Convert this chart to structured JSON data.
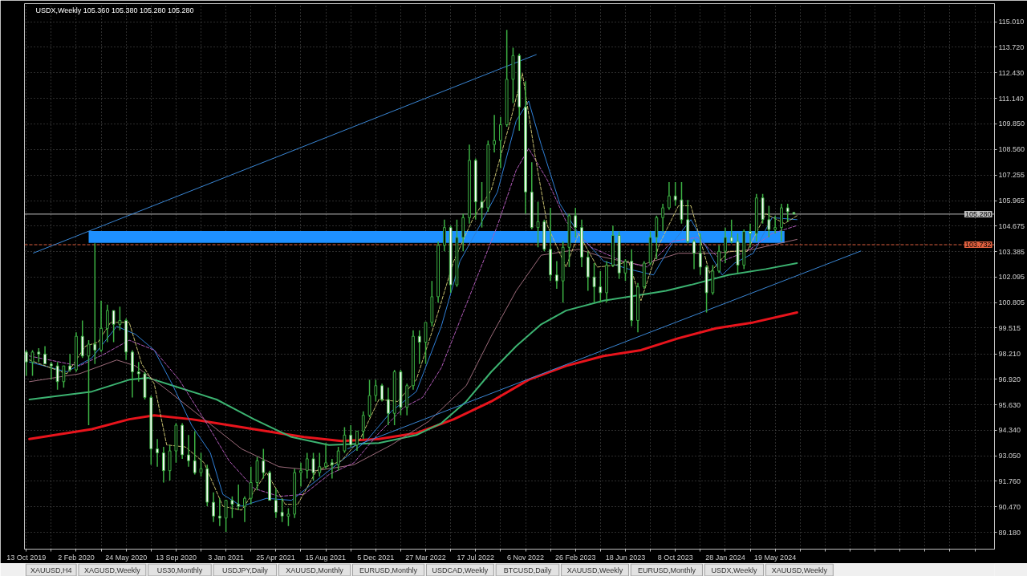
{
  "chart_data": {
    "type": "candlestick",
    "title": "USDX,Weekly 105.360 105.380 105.280 105.280",
    "color": "#3cb043",
    "x": [
      "2019-10-13",
      "2019-10-27",
      "2019-11-10",
      "2019-11-24",
      "2019-12-08",
      "2019-12-22",
      "2020-01-05",
      "2020-01-19",
      "2020-02-02",
      "2020-02-16",
      "2020-03-01",
      "2020-03-15",
      "2020-03-29",
      "2020-04-12",
      "2020-04-26",
      "2020-05-10",
      "2020-05-24",
      "2020-06-07",
      "2020-06-21",
      "2020-07-05",
      "2020-07-19",
      "2020-08-02",
      "2020-08-16",
      "2020-08-30",
      "2020-09-13",
      "2020-09-27",
      "2020-10-11",
      "2020-10-25",
      "2020-11-08",
      "2020-11-22",
      "2020-12-06",
      "2020-12-20",
      "2021-01-03",
      "2021-01-17",
      "2021-01-31",
      "2021-02-14",
      "2021-02-28",
      "2021-03-14",
      "2021-03-28",
      "2021-04-11",
      "2021-04-25",
      "2021-05-09",
      "2021-05-23",
      "2021-06-06",
      "2021-06-20",
      "2021-07-04",
      "2021-07-18",
      "2021-08-01",
      "2021-08-15",
      "2021-08-29",
      "2021-09-12",
      "2021-09-26",
      "2021-10-10",
      "2021-10-24",
      "2021-11-07",
      "2021-11-21",
      "2021-12-05",
      "2021-12-19",
      "2022-01-02",
      "2022-01-16",
      "2022-01-30",
      "2022-02-13",
      "2022-02-27",
      "2022-03-13",
      "2022-03-27",
      "2022-04-10",
      "2022-04-24",
      "2022-05-08",
      "2022-05-22",
      "2022-06-05",
      "2022-06-19",
      "2022-07-03",
      "2022-07-17",
      "2022-07-31",
      "2022-08-14",
      "2022-08-28",
      "2022-09-11",
      "2022-09-25",
      "2022-10-09",
      "2022-10-23",
      "2022-11-06",
      "2022-11-20",
      "2022-12-04",
      "2022-12-18",
      "2023-01-01",
      "2023-01-15",
      "2023-01-29",
      "2023-02-12",
      "2023-02-26",
      "2023-03-12",
      "2023-03-26",
      "2023-04-09",
      "2023-04-23",
      "2023-05-07",
      "2023-05-21",
      "2023-06-04",
      "2023-06-18",
      "2023-07-02",
      "2023-07-16",
      "2023-07-30",
      "2023-08-13",
      "2023-08-27",
      "2023-09-10",
      "2023-09-24",
      "2023-10-08",
      "2023-10-22",
      "2023-11-05",
      "2023-11-19",
      "2023-12-03",
      "2023-12-17",
      "2023-12-31",
      "2024-01-14",
      "2024-01-28",
      "2024-02-11",
      "2024-02-25",
      "2024-03-10",
      "2024-03-24",
      "2024-04-07",
      "2024-04-21",
      "2024-05-05",
      "2024-05-19",
      "2024-06-02",
      "2024-06-16",
      "2024-06-30"
    ],
    "ohlc": [
      [
        98.3,
        98.4,
        97.1,
        97.8
      ],
      [
        97.8,
        98.4,
        97.1,
        98.3
      ],
      [
        98.3,
        98.5,
        97.8,
        98.2
      ],
      [
        98.2,
        98.6,
        97.7,
        97.7
      ],
      [
        97.7,
        97.8,
        96.9,
        97.6
      ],
      [
        97.6,
        97.8,
        96.4,
        96.8
      ],
      [
        96.8,
        97.6,
        96.5,
        97.6
      ],
      [
        97.6,
        98.2,
        97.3,
        97.4
      ],
      [
        97.4,
        99.3,
        97.3,
        99.1
      ],
      [
        99.1,
        99.9,
        98.0,
        98.1
      ],
      [
        98.1,
        98.9,
        94.6,
        98.7
      ],
      [
        98.7,
        103.8,
        97.7,
        98.4
      ],
      [
        98.4,
        100.9,
        98.3,
        99.5
      ],
      [
        99.5,
        100.7,
        98.8,
        100.4
      ],
      [
        100.4,
        100.4,
        98.8,
        99.7
      ],
      [
        99.7,
        100.6,
        99.4,
        99.9
      ],
      [
        99.9,
        100.0,
        97.9,
        98.3
      ],
      [
        98.3,
        98.4,
        96.0,
        97.3
      ],
      [
        97.3,
        97.8,
        96.8,
        97.2
      ],
      [
        97.2,
        97.3,
        95.9,
        96.0
      ],
      [
        96.0,
        96.1,
        92.6,
        93.4
      ],
      [
        93.4,
        93.9,
        92.5,
        93.2
      ],
      [
        93.2,
        93.5,
        91.7,
        92.3
      ],
      [
        92.3,
        93.6,
        91.8,
        93.3
      ],
      [
        93.3,
        94.7,
        92.7,
        94.6
      ],
      [
        94.6,
        94.7,
        92.9,
        93.1
      ],
      [
        93.1,
        94.1,
        92.5,
        92.8
      ],
      [
        92.8,
        94.3,
        92.1,
        92.2
      ],
      [
        92.2,
        93.2,
        92.0,
        92.4
      ],
      [
        92.4,
        92.6,
        90.5,
        90.7
      ],
      [
        90.7,
        91.2,
        89.7,
        90.0
      ],
      [
        90.0,
        90.9,
        89.5,
        89.9
      ],
      [
        89.9,
        90.8,
        89.2,
        90.8
      ],
      [
        90.8,
        91.0,
        89.9,
        90.6
      ],
      [
        90.6,
        91.6,
        90.3,
        90.5
      ],
      [
        90.5,
        91.0,
        89.7,
        90.9
      ],
      [
        90.9,
        92.5,
        90.6,
        91.7
      ],
      [
        91.7,
        93.0,
        91.3,
        92.8
      ],
      [
        92.8,
        93.4,
        91.9,
        92.2
      ],
      [
        92.2,
        92.3,
        90.8,
        90.8
      ],
      [
        90.8,
        91.4,
        89.9,
        90.2
      ],
      [
        90.2,
        90.9,
        89.7,
        90.0
      ],
      [
        90.0,
        90.4,
        89.5,
        90.1
      ],
      [
        90.1,
        92.4,
        89.9,
        92.2
      ],
      [
        92.2,
        92.7,
        91.5,
        92.3
      ],
      [
        92.3,
        93.2,
        91.9,
        92.9
      ],
      [
        92.9,
        93.2,
        91.8,
        92.2
      ],
      [
        92.2,
        93.2,
        92.0,
        92.5
      ],
      [
        92.5,
        93.7,
        92.4,
        92.7
      ],
      [
        92.7,
        92.9,
        91.9,
        92.6
      ],
      [
        92.6,
        93.5,
        92.3,
        93.3
      ],
      [
        93.3,
        94.5,
        93.2,
        94.1
      ],
      [
        94.1,
        94.6,
        93.5,
        93.6
      ],
      [
        93.6,
        94.3,
        93.3,
        94.3
      ],
      [
        94.3,
        95.3,
        93.9,
        95.1
      ],
      [
        95.1,
        96.9,
        95.0,
        96.1
      ],
      [
        96.1,
        96.9,
        95.8,
        96.6
      ],
      [
        96.6,
        96.7,
        95.8,
        95.9
      ],
      [
        95.9,
        96.5,
        94.6,
        95.2
      ],
      [
        95.2,
        97.4,
        94.6,
        97.3
      ],
      [
        97.3,
        97.4,
        95.1,
        95.5
      ],
      [
        95.5,
        96.7,
        95.1,
        96.6
      ],
      [
        96.6,
        99.4,
        96.4,
        99.1
      ],
      [
        99.1,
        99.4,
        97.7,
        98.8
      ],
      [
        98.8,
        99.8,
        97.7,
        99.8
      ],
      [
        99.8,
        101.9,
        99.6,
        101.1
      ],
      [
        101.1,
        103.9,
        100.8,
        103.7
      ],
      [
        103.7,
        105.0,
        103.4,
        104.6
      ],
      [
        104.6,
        104.7,
        101.3,
        101.7
      ],
      [
        101.7,
        105.0,
        101.6,
        104.1
      ],
      [
        104.1,
        105.3,
        103.4,
        105.1
      ],
      [
        105.1,
        108.8,
        104.8,
        108.0
      ],
      [
        108.0,
        108.1,
        105.0,
        105.9
      ],
      [
        105.9,
        106.9,
        104.6,
        105.6
      ],
      [
        105.6,
        109.0,
        105.4,
        108.8
      ],
      [
        108.8,
        110.3,
        108.4,
        109.0
      ],
      [
        109.0,
        110.2,
        107.6,
        109.8
      ],
      [
        109.8,
        114.6,
        109.7,
        112.1
      ],
      [
        112.1,
        113.7,
        110.9,
        113.3
      ],
      [
        113.3,
        113.4,
        109.5,
        110.7
      ],
      [
        110.7,
        112.0,
        105.3,
        106.4
      ],
      [
        106.4,
        107.9,
        104.5,
        104.6
      ],
      [
        104.6,
        105.9,
        103.6,
        104.9
      ],
      [
        104.9,
        105.0,
        103.4,
        103.5
      ],
      [
        103.5,
        105.6,
        101.9,
        102.2
      ],
      [
        102.2,
        102.9,
        101.5,
        101.9
      ],
      [
        101.9,
        103.9,
        100.8,
        103.6
      ],
      [
        103.6,
        105.3,
        102.6,
        105.2
      ],
      [
        105.2,
        105.6,
        104.1,
        104.6
      ],
      [
        104.6,
        105.0,
        102.6,
        103.1
      ],
      [
        103.1,
        103.4,
        101.4,
        102.1
      ],
      [
        102.1,
        102.8,
        100.8,
        101.6
      ],
      [
        101.6,
        102.4,
        100.8,
        101.3
      ],
      [
        101.3,
        102.9,
        100.8,
        102.7
      ],
      [
        102.7,
        104.7,
        102.6,
        104.2
      ],
      [
        104.2,
        104.4,
        102.0,
        102.3
      ],
      [
        102.3,
        103.0,
        101.9,
        102.9
      ],
      [
        102.9,
        103.5,
        99.6,
        99.9
      ],
      [
        99.9,
        101.8,
        99.3,
        101.6
      ],
      [
        101.6,
        102.9,
        101.5,
        102.8
      ],
      [
        102.8,
        104.4,
        102.7,
        104.1
      ],
      [
        104.1,
        105.2,
        103.0,
        105.1
      ],
      [
        105.1,
        105.8,
        104.4,
        105.6
      ],
      [
        105.6,
        106.9,
        105.5,
        106.2
      ],
      [
        106.2,
        106.9,
        105.7,
        106.0
      ],
      [
        106.0,
        106.9,
        104.8,
        105.0
      ],
      [
        105.0,
        106.0,
        103.8,
        103.9
      ],
      [
        103.9,
        104.0,
        102.5,
        103.3
      ],
      [
        103.3,
        104.3,
        102.2,
        102.6
      ],
      [
        102.6,
        102.7,
        100.3,
        101.3
      ],
      [
        101.3,
        102.7,
        101.2,
        102.4
      ],
      [
        102.4,
        103.7,
        102.3,
        103.4
      ],
      [
        103.4,
        104.6,
        102.8,
        104.1
      ],
      [
        104.1,
        105.0,
        103.8,
        103.9
      ],
      [
        103.9,
        104.3,
        102.3,
        102.7
      ],
      [
        102.7,
        104.5,
        102.5,
        104.4
      ],
      [
        104.4,
        104.8,
        103.6,
        104.3
      ],
      [
        104.3,
        106.3,
        103.9,
        106.1
      ],
      [
        106.1,
        106.3,
        104.8,
        105.0
      ],
      [
        105.0,
        105.7,
        104.1,
        104.5
      ],
      [
        104.5,
        105.2,
        104.3,
        104.6
      ],
      [
        104.6,
        105.8,
        103.9,
        105.6
      ],
      [
        105.6,
        105.8,
        104.9,
        105.4
      ],
      [
        105.36,
        105.38,
        105.28,
        105.28
      ]
    ],
    "colors": [
      "#ffffff",
      "#000000",
      "#ffffff",
      "#ffffff",
      "#ffffff",
      "#ffffff",
      "#000000",
      "#ffffff",
      "#000000",
      "#ffffff",
      "#000000",
      "#ffffff",
      "#000000",
      "#000000",
      "#ffffff",
      "#000000",
      "#ffffff",
      "#ffffff",
      "#ffffff",
      "#ffffff",
      "#ffffff",
      "#ffffff",
      "#ffffff",
      "#000000",
      "#000000",
      "#ffffff",
      "#ffffff",
      "#ffffff",
      "#000000",
      "#ffffff",
      "#ffffff",
      "#ffffff",
      "#000000",
      "#ffffff",
      "#ffffff",
      "#000000",
      "#000000",
      "#000000",
      "#ffffff",
      "#ffffff",
      "#ffffff",
      "#ffffff",
      "#000000",
      "#000000",
      "#000000",
      "#000000",
      "#ffffff",
      "#000000",
      "#000000",
      "#ffffff",
      "#000000",
      "#000000",
      "#ffffff",
      "#000000",
      "#000000",
      "#000000",
      "#000000",
      "#ffffff",
      "#ffffff",
      "#000000",
      "#ffffff",
      "#000000",
      "#000000",
      "#ffffff",
      "#000000",
      "#000000",
      "#000000",
      "#000000",
      "#ffffff",
      "#000000",
      "#000000",
      "#000000",
      "#ffffff",
      "#ffffff",
      "#000000",
      "#000000",
      "#000000",
      "#000000",
      "#000000",
      "#ffffff",
      "#ffffff",
      "#ffffff",
      "#000000",
      "#ffffff",
      "#ffffff",
      "#ffffff",
      "#000000",
      "#000000",
      "#ffffff",
      "#ffffff",
      "#ffffff",
      "#ffffff",
      "#ffffff",
      "#000000",
      "#000000",
      "#ffffff",
      "#000000",
      "#ffffff",
      "#000000",
      "#000000",
      "#000000",
      "#000000",
      "#000000",
      "#000000",
      "#ffffff",
      "#ffffff",
      "#ffffff",
      "#ffffff",
      "#ffffff",
      "#ffffff",
      "#000000",
      "#000000",
      "#000000",
      "#ffffff",
      "#ffffff",
      "#000000",
      "#ffffff",
      "#000000",
      "#ffffff",
      "#ffffff",
      "#000000",
      "#000000",
      "#ffffff",
      "#ffffff"
    ],
    "series": [
      {
        "type": "line",
        "color": "#1e90ff",
        "x": [
          "2020-03-01",
          "2024-06-09"
        ],
        "values": [
          null,
          null
        ],
        "lower": [
          103.82,
          103.82
        ],
        "upper": [
          104.42,
          104.42
        ]
      },
      {
        "type": "line",
        "color": "#e8141c",
        "x": [
          "2019-10-20",
          "2020-03-08",
          "2020-05-31",
          "2020-07-26",
          "2020-10-18",
          "2021-01-10",
          "2021-04-04",
          "2021-06-27",
          "2021-09-19",
          "2021-12-12",
          "2022-03-06",
          "2022-05-29",
          "2022-08-21",
          "2022-11-13",
          "2023-02-05",
          "2023-04-30",
          "2023-07-23",
          "2023-10-15",
          "2024-01-07",
          "2024-03-31",
          "2024-07-07"
        ],
        "values": [
          93.9,
          94.4,
          94.9,
          95.1,
          94.9,
          94.6,
          94.3,
          94.0,
          93.8,
          93.9,
          94.2,
          94.9,
          95.8,
          96.9,
          97.6,
          98.1,
          98.4,
          99.0,
          99.5,
          99.8,
          100.3
        ]
      },
      {
        "type": "line",
        "color": "#3cb371",
        "x": [
          "2019-10-20",
          "2020-03-08",
          "2020-05-31",
          "2020-07-12",
          "2020-09-20",
          "2020-12-13",
          "2021-03-07",
          "2021-05-30",
          "2021-08-22",
          "2021-12-12",
          "2022-03-06",
          "2022-05-01",
          "2022-06-26",
          "2022-08-21",
          "2022-10-16",
          "2022-12-11",
          "2023-02-05",
          "2023-04-30",
          "2023-07-23",
          "2023-09-17",
          "2023-11-12",
          "2024-02-04",
          "2024-04-28",
          "2024-07-07"
        ],
        "values": [
          95.9,
          96.3,
          96.9,
          97.0,
          96.5,
          95.9,
          94.9,
          94.0,
          93.6,
          93.7,
          94.1,
          94.7,
          95.8,
          97.3,
          98.6,
          99.7,
          100.4,
          100.9,
          101.2,
          101.4,
          101.7,
          102.2,
          102.5,
          102.8
        ]
      },
      {
        "type": "line",
        "color": "#9c6b7a",
        "x": [
          "2019-10-20",
          "2020-02-09",
          "2020-05-03",
          "2020-06-14",
          "2020-08-23",
          "2020-11-15",
          "2021-02-07",
          "2021-05-02",
          "2021-07-25",
          "2021-10-17",
          "2022-01-09",
          "2022-04-03",
          "2022-06-26",
          "2022-08-21",
          "2022-10-16",
          "2022-12-11",
          "2023-03-05",
          "2023-04-30",
          "2023-07-23",
          "2023-10-15",
          "2024-01-07",
          "2024-03-31",
          "2024-07-07"
        ],
        "values": [
          96.8,
          97.2,
          97.9,
          97.6,
          96.4,
          94.9,
          93.4,
          92.5,
          92.3,
          92.6,
          93.6,
          94.8,
          96.6,
          99.1,
          101.4,
          103.2,
          103.5,
          103.1,
          102.7,
          103.3,
          103.3,
          103.5,
          104.0
        ]
      },
      {
        "type": "line",
        "color": "#2f7fd6",
        "x": [
          "2019-10-20",
          "2020-01-12",
          "2020-03-08",
          "2020-05-03",
          "2020-06-14",
          "2020-07-26",
          "2020-09-06",
          "2020-10-18",
          "2020-11-29",
          "2020-12-27",
          "2021-02-07",
          "2021-04-04",
          "2021-05-30",
          "2021-07-25",
          "2021-09-19",
          "2021-11-14",
          "2022-01-09",
          "2022-03-06",
          "2022-05-01",
          "2022-06-12",
          "2022-07-24",
          "2022-09-04",
          "2022-10-16",
          "2022-11-13",
          "2022-12-11",
          "2023-01-22",
          "2023-03-05",
          "2023-04-30",
          "2023-06-25",
          "2023-08-20",
          "2023-10-01",
          "2023-11-12",
          "2023-12-24",
          "2024-01-21",
          "2024-02-18",
          "2024-03-31",
          "2024-05-12",
          "2024-07-07"
        ],
        "values": [
          97.8,
          97.3,
          98.0,
          99.6,
          99.2,
          98.4,
          96.6,
          94.6,
          93.2,
          91.1,
          90.5,
          90.9,
          90.8,
          91.8,
          92.8,
          93.8,
          95.3,
          96.3,
          99.6,
          102.9,
          104.6,
          106.4,
          110.0,
          111.0,
          108.8,
          105.8,
          104.3,
          102.9,
          102.5,
          102.2,
          103.8,
          105.0,
          103.3,
          102.2,
          102.8,
          103.3,
          105.1,
          105.0
        ]
      },
      {
        "type": "line",
        "color": "#b05ab8",
        "line_style": "dashed",
        "x": [
          "2019-10-20",
          "2020-02-09",
          "2020-04-05",
          "2020-05-31",
          "2020-07-26",
          "2020-09-20",
          "2020-11-15",
          "2021-01-10",
          "2021-03-07",
          "2021-05-02",
          "2021-06-27",
          "2021-08-22",
          "2021-10-17",
          "2021-12-12",
          "2022-02-06",
          "2022-03-20",
          "2022-05-01",
          "2022-06-12",
          "2022-07-24",
          "2022-09-04",
          "2022-10-16",
          "2022-11-13",
          "2022-12-25",
          "2023-02-05",
          "2023-04-02",
          "2023-06-11",
          "2023-08-06",
          "2023-10-01",
          "2023-11-26",
          "2024-01-21",
          "2024-03-17",
          "2024-05-12",
          "2024-07-07"
        ],
        "values": [
          98.1,
          97.6,
          98.2,
          98.9,
          98.4,
          96.9,
          94.9,
          92.8,
          91.4,
          91.0,
          91.1,
          92.1,
          92.7,
          94.2,
          95.5,
          96.0,
          97.5,
          99.9,
          102.3,
          104.7,
          107.5,
          108.6,
          107.0,
          104.9,
          103.6,
          102.9,
          102.6,
          103.9,
          104.1,
          102.9,
          103.4,
          104.3,
          104.7
        ]
      },
      {
        "type": "line",
        "color": "#c8c070",
        "line_style": "dashed",
        "x": [
          "2019-10-20",
          "2020-01-12",
          "2020-02-23",
          "2020-03-22",
          "2020-04-19",
          "2020-05-31",
          "2020-06-28",
          "2020-07-26",
          "2020-08-23",
          "2020-10-04",
          "2020-11-15",
          "2020-12-27",
          "2021-02-07",
          "2021-04-04",
          "2021-05-16",
          "2021-06-13",
          "2021-07-25",
          "2021-09-19",
          "2021-10-31",
          "2021-12-12",
          "2022-01-23",
          "2022-03-06",
          "2022-04-17",
          "2022-05-29",
          "2022-07-10",
          "2022-08-21",
          "2022-10-02",
          "2022-10-30",
          "2022-11-27",
          "2022-12-25",
          "2023-02-05",
          "2023-03-05",
          "2023-04-16",
          "2023-05-28",
          "2023-06-25",
          "2023-07-23",
          "2023-09-03",
          "2023-10-15",
          "2023-11-12",
          "2023-12-24",
          "2024-02-04",
          "2024-03-17",
          "2024-04-28",
          "2024-06-09",
          "2024-07-07"
        ],
        "values": [
          97.9,
          97.2,
          98.6,
          98.8,
          99.8,
          99.8,
          97.7,
          96.7,
          93.6,
          93.5,
          92.7,
          90.5,
          90.3,
          92.2,
          90.6,
          90.6,
          92.3,
          92.8,
          93.9,
          95.9,
          95.8,
          96.9,
          99.8,
          102.9,
          105.0,
          106.5,
          109.9,
          112.4,
          108.3,
          104.7,
          102.6,
          104.3,
          102.6,
          102.7,
          102.9,
          100.9,
          103.8,
          105.7,
          105.7,
          102.3,
          103.4,
          103.4,
          105.3,
          104.8,
          105.2
        ]
      },
      {
        "type": "line",
        "color": "#3a86d4",
        "x": [
          "2019-10-29",
          "2022-11-30"
        ],
        "values": [
          103.31,
          113.35
        ]
      },
      {
        "type": "line",
        "color": "#3a86d4",
        "x": [
          "2021-10-03",
          "2024-11-27"
        ],
        "values": [
          93.41,
          103.41
        ]
      }
    ],
    "xlim": [
      "2019-10-09",
      "2025-09-23"
    ],
    "ylim": [
      88.33,
      115.93
    ],
    "xticks": [
      {
        "value": "2019-10-13",
        "label": "13 Oct 2019"
      },
      {
        "value": "2019-12-08",
        "label": null
      },
      {
        "value": "2020-02-02",
        "label": "2 Feb 2020"
      },
      {
        "value": "2020-03-29",
        "label": null
      },
      {
        "value": "2020-05-24",
        "label": "24 May 2020"
      },
      {
        "value": "2020-07-19",
        "label": null
      },
      {
        "value": "2020-09-13",
        "label": "13 Sep 2020"
      },
      {
        "value": "2020-11-08",
        "label": null
      },
      {
        "value": "2021-01-03",
        "label": "3 Jan 2021"
      },
      {
        "value": "2021-02-28",
        "label": null
      },
      {
        "value": "2021-04-25",
        "label": "25 Apr 2021"
      },
      {
        "value": "2021-06-20",
        "label": null
      },
      {
        "value": "2021-08-15",
        "label": "15 Aug 2021"
      },
      {
        "value": "2021-10-10",
        "label": null
      },
      {
        "value": "2021-12-05",
        "label": "5 Dec 2021"
      },
      {
        "value": "2022-01-30",
        "label": null
      },
      {
        "value": "2022-03-27",
        "label": "27 Mar 2022"
      },
      {
        "value": "2022-05-22",
        "label": null
      },
      {
        "value": "2022-07-17",
        "label": "17 Jul 2022"
      },
      {
        "value": "2022-09-11",
        "label": null
      },
      {
        "value": "2022-11-06",
        "label": "6 Nov 2022"
      },
      {
        "value": "2023-01-01",
        "label": null
      },
      {
        "value": "2023-02-26",
        "label": "26 Feb 2023"
      },
      {
        "value": "2023-04-23",
        "label": null
      },
      {
        "value": "2023-06-18",
        "label": "18 Jun 2023"
      },
      {
        "value": "2023-08-13",
        "label": null
      },
      {
        "value": "2023-10-08",
        "label": "8 Oct 2023"
      },
      {
        "value": "2023-12-03",
        "label": null
      },
      {
        "value": "2024-01-28",
        "label": "28 Jan 2024"
      },
      {
        "value": "2024-03-24",
        "label": null
      },
      {
        "value": "2024-05-19",
        "label": "19 May 2024"
      },
      {
        "value": "2024-07-14",
        "label": null
      },
      {
        "value": "2024-09-08",
        "label": null
      },
      {
        "value": "2024-11-03",
        "label": null
      },
      {
        "value": "2024-12-29",
        "label": null
      },
      {
        "value": "2025-02-23",
        "label": null
      },
      {
        "value": "2025-04-20",
        "label": null
      },
      {
        "value": "2025-06-15",
        "label": null
      },
      {
        "value": "2025-08-10",
        "label": null
      }
    ],
    "yticks": [
      {
        "value": 89.18,
        "label": "89.180"
      },
      {
        "value": 90.47,
        "label": "90.470"
      },
      {
        "value": 91.76,
        "label": "91.760"
      },
      {
        "value": 93.05,
        "label": "93.050"
      },
      {
        "value": 94.34,
        "label": "94.340"
      },
      {
        "value": 95.63,
        "label": "95.630"
      },
      {
        "value": 96.92,
        "label": "96.920"
      },
      {
        "value": 98.21,
        "label": "98.210"
      },
      {
        "value": 99.515,
        "label": "99.515"
      },
      {
        "value": 100.805,
        "label": "100.805"
      },
      {
        "value": 102.095,
        "label": "102.095"
      },
      {
        "value": 103.385,
        "label": "103.385"
      },
      {
        "value": 104.675,
        "label": "104.675"
      },
      {
        "value": 105.965,
        "label": "105.965"
      },
      {
        "value": 107.255,
        "label": "107.255"
      },
      {
        "value": 108.56,
        "label": "108.560"
      },
      {
        "value": 109.85,
        "label": "109.850"
      },
      {
        "value": 111.14,
        "label": "111.140"
      },
      {
        "value": 112.43,
        "label": "112.430"
      },
      {
        "value": 113.72,
        "label": "113.720"
      },
      {
        "value": 115.01,
        "label": "115.010"
      }
    ],
    "grid": true,
    "ref_lines": [
      {
        "axis": "y",
        "value": 105.28,
        "label": "105.280",
        "color": "#c0c0c0"
      },
      {
        "axis": "y",
        "value": 103.732,
        "label": "103.732",
        "color": "#e0603f",
        "line_style": "dashed"
      }
    ],
    "annotations": [
      "XAUUSD,H4",
      "XAGUSD,Weekly",
      "US30,Monthly",
      "USDJPY,Daily",
      "XAUUSD,Monthly",
      "EURUSD,Monthly",
      "USDCAD,Weekly",
      "BTCUSD,Daily",
      "XAUUSD,Weekly",
      "EURUSD,Monthly",
      "USDX,Weekly",
      "XAUUSD,Weekly"
    ]
  }
}
